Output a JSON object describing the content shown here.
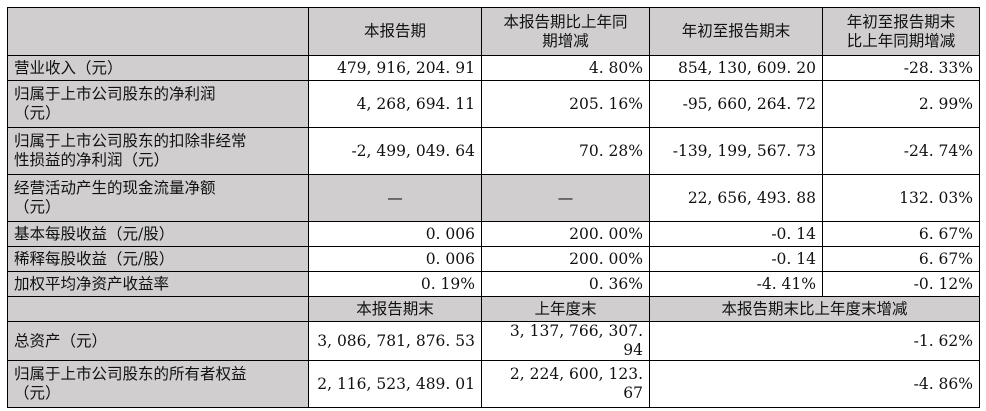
{
  "header1": {
    "blank": "",
    "col1": "本报告期",
    "col2_line1": "本报告期比上年同",
    "col2_line2": "期增减",
    "col3": "年初至报告期末",
    "col4_line1": "年初至报告期末",
    "col4_line2": "比上年同期增减"
  },
  "rows1": [
    {
      "label_line1": "营业收入（元）",
      "label_line2": "",
      "v1": "479, 916, 204. 91",
      "v2": "4. 80%",
      "v3": "854, 130, 609. 20",
      "v4": "-28. 33%"
    },
    {
      "label_line1": "归属于上市公司股东的净利润",
      "label_line2": "（元）",
      "v1": "4, 268, 694. 11",
      "v2": "205. 16%",
      "v3": "-95, 660, 264. 72",
      "v4": "2. 99%"
    },
    {
      "label_line1": "归属于上市公司股东的扣除非经常",
      "label_line2": "性损益的净利润（元）",
      "v1": "-2, 499, 049. 64",
      "v2": "70. 28%",
      "v3": "-139, 199, 567. 73",
      "v4": "-24. 74%"
    },
    {
      "label_line1": "经营活动产生的现金流量净额",
      "label_line2": "（元）",
      "v1": "—",
      "v2": "—",
      "v3": "22, 656, 493. 88",
      "v4": "132. 03%"
    },
    {
      "label_line1": "基本每股收益（元/股）",
      "label_line2": "",
      "v1": "0. 006",
      "v2": "200. 00%",
      "v3": "-0. 14",
      "v4": "6. 67%"
    },
    {
      "label_line1": "稀释每股收益（元/股）",
      "label_line2": "",
      "v1": "0. 006",
      "v2": "200. 00%",
      "v3": "-0. 14",
      "v4": "6. 67%"
    },
    {
      "label_line1": "加权平均净资产收益率",
      "label_line2": "",
      "v1": "0. 19%",
      "v2": "0. 36%",
      "v3": "-4. 41%",
      "v4": "-0. 12%"
    }
  ],
  "header2": {
    "blank": "",
    "col1": "本报告期末",
    "col2": "上年度末",
    "col3": "本报告期末比上年度末增减"
  },
  "rows2": [
    {
      "label_line1": "总资产（元）",
      "label_line2": "",
      "v1": "3, 086, 781, 876. 53",
      "v2": "3, 137, 766, 307. 94",
      "v3": "-1. 62%"
    },
    {
      "label_line1": "归属于上市公司股东的所有者权益",
      "label_line2": "（元）",
      "v1": "2, 116, 523, 489. 01",
      "v2": "2, 224, 600, 123. 67",
      "v3": "-4. 86%"
    }
  ]
}
